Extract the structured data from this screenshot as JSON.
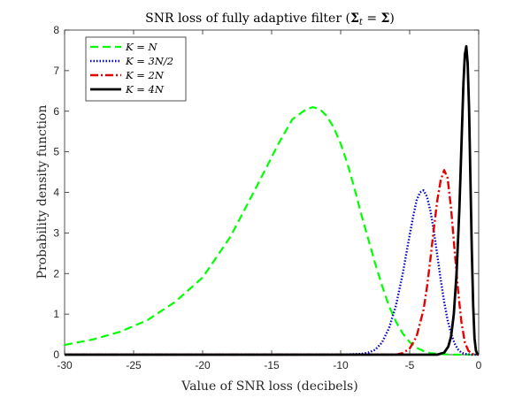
{
  "chart_data": {
    "type": "line",
    "title": "SNR loss of fully adaptive filter (Σ_t = Σ)",
    "title_parts": {
      "prefix": "SNR loss of fully adaptive filter (",
      "sym1": "Σ",
      "sub1": "t",
      "eq": " = ",
      "sym2": "Σ",
      "suffix": ")"
    },
    "xlabel": "Value of SNR loss (decibels)",
    "ylabel": "Probability density function",
    "xlim": [
      -30,
      0
    ],
    "ylim": [
      0,
      8
    ],
    "xticks": [
      -30,
      -25,
      -20,
      -15,
      -10,
      -5,
      0
    ],
    "yticks": [
      0,
      1,
      2,
      3,
      4,
      5,
      6,
      7,
      8
    ],
    "grid": false,
    "legend_position": "top-left",
    "series": [
      {
        "name": "K = N",
        "label_parts": {
          "lhs": "K",
          "eq": " = ",
          "rhs": "N"
        },
        "color": "#00ff00",
        "dash": "dashed",
        "x": [
          -30,
          -28,
          -26,
          -24,
          -22,
          -20,
          -18,
          -16,
          -14.5,
          -13.5,
          -12.5,
          -12,
          -11.5,
          -11,
          -10.5,
          -10,
          -9.5,
          -9,
          -8.5,
          -8,
          -7.5,
          -7,
          -6.5,
          -6,
          -5.5,
          -5,
          -4.5,
          -4,
          -3.5,
          -3,
          -2.5,
          -2,
          -1.5,
          -1,
          -0.5,
          0
        ],
        "y": [
          0.24,
          0.37,
          0.56,
          0.85,
          1.3,
          1.9,
          2.9,
          4.2,
          5.2,
          5.8,
          6.05,
          6.1,
          6.05,
          5.88,
          5.6,
          5.2,
          4.7,
          4.1,
          3.45,
          2.85,
          2.25,
          1.7,
          1.2,
          0.82,
          0.52,
          0.31,
          0.17,
          0.09,
          0.04,
          0.02,
          0.01,
          0.0,
          0.0,
          0.0,
          0.0,
          0.0
        ]
      },
      {
        "name": "K = 3N/2",
        "label_parts": {
          "lhs": "K",
          "eq": " = ",
          "rhs": "3N/2"
        },
        "color": "#0000cc",
        "dash": "dotted",
        "x": [
          -30,
          -10,
          -8.5,
          -8,
          -7.5,
          -7,
          -6.5,
          -6,
          -5.5,
          -5,
          -4.75,
          -4.5,
          -4.25,
          -4,
          -3.75,
          -3.5,
          -3.25,
          -3,
          -2.75,
          -2.5,
          -2.25,
          -2,
          -1.75,
          -1.5,
          -1.25,
          -1,
          -0.5,
          0
        ],
        "y": [
          0.0,
          0.0,
          0.02,
          0.05,
          0.12,
          0.3,
          0.65,
          1.2,
          2.0,
          2.95,
          3.4,
          3.8,
          4.0,
          4.05,
          3.9,
          3.55,
          3.05,
          2.45,
          1.85,
          1.3,
          0.85,
          0.52,
          0.28,
          0.13,
          0.05,
          0.02,
          0.0,
          0.0
        ]
      },
      {
        "name": "K = 2N",
        "label_parts": {
          "lhs": "K",
          "eq": " = ",
          "rhs": "2N"
        },
        "color": "#e60000",
        "dash": "dashdot",
        "x": [
          -30,
          -6,
          -5.5,
          -5,
          -4.5,
          -4,
          -3.75,
          -3.5,
          -3.25,
          -3,
          -2.75,
          -2.5,
          -2.25,
          -2,
          -1.75,
          -1.5,
          -1.25,
          -1,
          -0.75,
          -0.5,
          0
        ],
        "y": [
          0.0,
          0.0,
          0.04,
          0.15,
          0.45,
          1.1,
          1.65,
          2.35,
          3.1,
          3.8,
          4.3,
          4.55,
          4.35,
          3.6,
          2.6,
          1.6,
          0.8,
          0.3,
          0.1,
          0.02,
          0.0
        ]
      },
      {
        "name": "K = 4N",
        "label_parts": {
          "lhs": "K",
          "eq": " = ",
          "rhs": "4N"
        },
        "color": "#000000",
        "dash": "solid",
        "x": [
          -30,
          -3,
          -2.5,
          -2.2,
          -2,
          -1.8,
          -1.6,
          -1.4,
          -1.3,
          -1.2,
          -1.1,
          -1.0,
          -0.9,
          -0.8,
          -0.7,
          -0.6,
          -0.5,
          -0.4,
          -0.3,
          -0.2,
          -0.1,
          0
        ],
        "y": [
          0.0,
          0.0,
          0.05,
          0.2,
          0.45,
          1.0,
          2.0,
          3.6,
          4.6,
          5.7,
          6.7,
          7.4,
          7.6,
          7.2,
          6.1,
          4.4,
          2.6,
          1.2,
          0.4,
          0.1,
          0.02,
          0.0
        ]
      }
    ]
  }
}
